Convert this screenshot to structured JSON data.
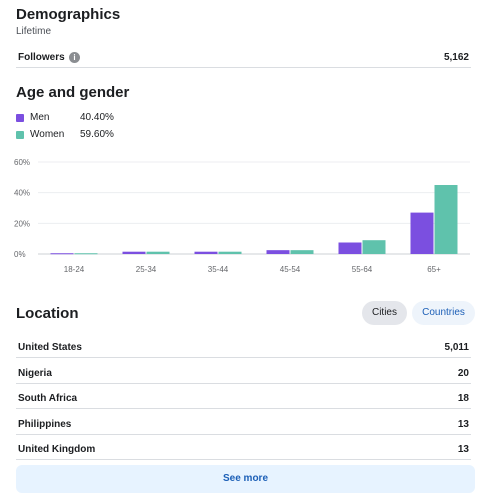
{
  "demographics": {
    "title": "Demographics",
    "subtitle": "Lifetime",
    "followers_label": "Followers",
    "followers_value": "5,162"
  },
  "age_gender": {
    "title": "Age and gender",
    "legend": [
      {
        "label": "Men",
        "value": "40.40%",
        "color": "#7b4fe0"
      },
      {
        "label": "Women",
        "value": "59.60%",
        "color": "#5fc2ac"
      }
    ]
  },
  "chart_data": {
    "type": "bar",
    "categories": [
      "18-24",
      "25-34",
      "35-44",
      "45-54",
      "55-64",
      "65+"
    ],
    "series": [
      {
        "name": "Men",
        "values": [
          0.5,
          1.5,
          1.5,
          2.5,
          7.5,
          27.0
        ]
      },
      {
        "name": "Women",
        "values": [
          0.5,
          1.5,
          1.5,
          2.5,
          9.0,
          45.0
        ]
      }
    ],
    "y_ticks": [
      "60%",
      "40%",
      "20%",
      "0%"
    ],
    "ylim": [
      0,
      60
    ],
    "grid": true,
    "colors": [
      "#7b4fe0",
      "#5fc2ac"
    ]
  },
  "location": {
    "title": "Location",
    "tabs": [
      {
        "label": "Cities",
        "active": true
      },
      {
        "label": "Countries",
        "active": false
      }
    ],
    "rows": [
      {
        "name": "United States",
        "value": "5,011"
      },
      {
        "name": "Nigeria",
        "value": "20"
      },
      {
        "name": "South Africa",
        "value": "18"
      },
      {
        "name": "Philippines",
        "value": "13"
      },
      {
        "name": "United Kingdom",
        "value": "13"
      }
    ],
    "see_more": "See more"
  }
}
